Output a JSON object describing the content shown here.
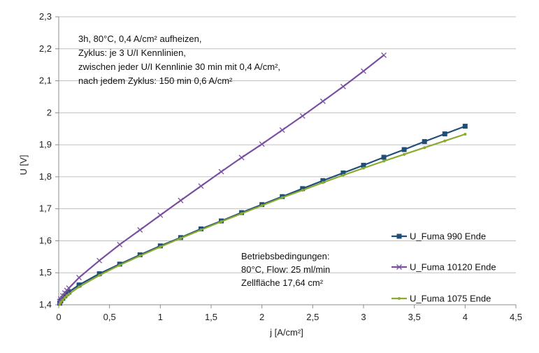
{
  "chart_data": {
    "type": "line",
    "title": "",
    "xlabel": "j [A/cm²]",
    "ylabel": "U [V]",
    "xlim": [
      0,
      4.5
    ],
    "ylim": [
      1.4,
      2.3
    ],
    "grid": "horizontal",
    "legend_position": "right",
    "x_ticks": [
      "0",
      "0,5",
      "1",
      "1,5",
      "2",
      "2,5",
      "3",
      "3,5",
      "4",
      "4,5"
    ],
    "y_ticks": [
      "1,4",
      "1,5",
      "1,6",
      "1,7",
      "1,8",
      "1,9",
      "2",
      "2,1",
      "2,2",
      "2,3"
    ],
    "annotations": {
      "conditions_lines": [
        "3h, 80°C, 0,4 A/cm² aufheizen,",
        "Zyklus: je 3 U/I Kennlinien,",
        "zwischen jeder U/I Kennlinie 30 min mit 0,4 A/cm²,",
        "nach jedem Zyklus: 150 min  0,6 A/cm²"
      ],
      "operation_lines": [
        "Betriebsbedingungen:",
        "80°C, Flow: 25 ml/min",
        "Zellfläche 17,64 cm²"
      ]
    },
    "series": [
      {
        "name": "U_Fuma 990 Ende",
        "color": "#1f4e79",
        "marker": "square",
        "x": [
          0.01,
          0.02,
          0.04,
          0.06,
          0.08,
          0.1,
          0.2,
          0.4,
          0.6,
          0.8,
          1.0,
          1.2,
          1.4,
          1.6,
          1.8,
          2.0,
          2.2,
          2.4,
          2.6,
          2.8,
          3.0,
          3.2,
          3.4,
          3.6,
          3.8,
          4.0
        ],
        "y": [
          1.405,
          1.412,
          1.42,
          1.428,
          1.435,
          1.44,
          1.462,
          1.497,
          1.527,
          1.556,
          1.584,
          1.61,
          1.637,
          1.662,
          1.688,
          1.713,
          1.738,
          1.763,
          1.788,
          1.812,
          1.836,
          1.861,
          1.885,
          1.91,
          1.934,
          1.958
        ]
      },
      {
        "name": "U_Fuma 10120 Ende",
        "color": "#7b4fa0",
        "marker": "x",
        "x": [
          0.01,
          0.02,
          0.04,
          0.06,
          0.08,
          0.1,
          0.2,
          0.4,
          0.6,
          0.8,
          1.0,
          1.2,
          1.4,
          1.6,
          1.8,
          2.0,
          2.2,
          2.4,
          2.6,
          2.8,
          3.0,
          3.2
        ],
        "y": [
          1.41,
          1.418,
          1.428,
          1.437,
          1.445,
          1.452,
          1.485,
          1.538,
          1.588,
          1.634,
          1.68,
          1.726,
          1.771,
          1.816,
          1.86,
          1.902,
          1.946,
          1.99,
          2.036,
          2.082,
          2.13,
          2.18
        ]
      },
      {
        "name": "U_Fuma 1075 Ende",
        "color": "#8aab2e",
        "marker": "dot",
        "x": [
          0.01,
          0.02,
          0.04,
          0.06,
          0.08,
          0.1,
          0.2,
          0.4,
          0.6,
          0.8,
          1.0,
          1.2,
          1.4,
          1.6,
          1.8,
          2.0,
          2.2,
          2.4,
          2.6,
          2.8,
          3.0,
          3.2,
          3.4,
          3.6,
          3.8,
          4.0
        ],
        "y": [
          1.402,
          1.408,
          1.415,
          1.422,
          1.428,
          1.433,
          1.456,
          1.492,
          1.524,
          1.553,
          1.581,
          1.608,
          1.634,
          1.66,
          1.685,
          1.71,
          1.735,
          1.758,
          1.782,
          1.805,
          1.827,
          1.849,
          1.87,
          1.891,
          1.912,
          1.933
        ]
      }
    ]
  }
}
